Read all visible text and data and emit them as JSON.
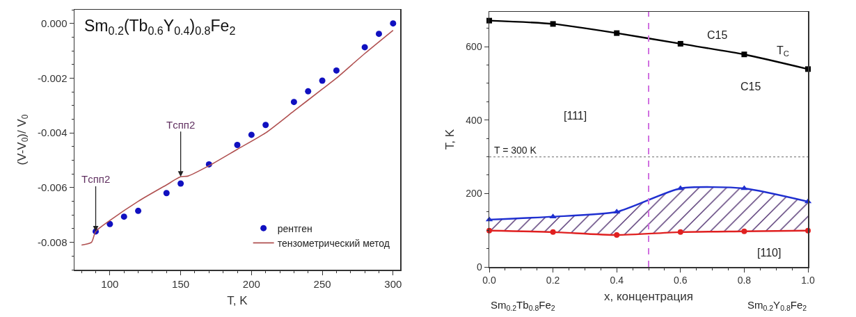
{
  "chart_data": [
    {
      "type": "scatter",
      "title": "Sm$_{0.2}$(Tb$_{0.6}$Y$_{0.4}$)$_{0.8}$Fe$_{2}$",
      "xlabel": "T, K",
      "ylabel": "(V-V$_{0}$)/ V$_{0}$",
      "xlim": [
        75,
        305
      ],
      "xticks": [
        100,
        150,
        200,
        250,
        300
      ],
      "ylim": [
        -0.009,
        0.0005
      ],
      "yticks": [
        {
          "value": -0.008,
          "label": "-0.008"
        },
        {
          "value": -0.006,
          "label": "-0.006"
        },
        {
          "value": -0.004,
          "label": "-0.004"
        },
        {
          "value": -0.002,
          "label": "-0.002"
        },
        {
          "value": 0,
          "label": "0.000"
        }
      ],
      "grid": false,
      "legend": "bottom right",
      "series": [
        {
          "name": "рентген",
          "marker": "circle",
          "color": "#1010c0",
          "x": [
            90,
            100,
            110,
            120,
            140,
            150,
            170,
            190,
            200,
            210,
            230,
            240,
            250,
            260,
            280,
            290,
            300
          ],
          "values": [
            -0.0076,
            -0.00733,
            -0.00706,
            -0.00685,
            -0.0062,
            -0.00585,
            -0.00515,
            -0.00444,
            -0.00407,
            -0.00371,
            -0.00287,
            -0.00248,
            -0.00209,
            -0.00172,
            -0.00087,
            -0.00038,
            0
          ]
        },
        {
          "name": "тензометрический метод",
          "type": "line",
          "marker": "none",
          "line_style": "solid",
          "color": "#b05050",
          "x": [
            80,
            87,
            90,
            100,
            120,
            140,
            150,
            155,
            170,
            190,
            210,
            230,
            250,
            260,
            280,
            300
          ],
          "values": [
            -0.0081,
            -0.008,
            -0.0076,
            -0.0072,
            -0.0065,
            -0.0059,
            -0.0056,
            -0.00558,
            -0.0052,
            -0.0046,
            -0.004,
            -0.0032,
            -0.0024,
            -0.002,
            -0.0011,
            -0.00025
          ]
        }
      ],
      "annotations": [
        {
          "text": "Tспп2",
          "x": 90,
          "y": -0.0076
        },
        {
          "text": "Tспп2",
          "x": 150,
          "y": -0.0056
        }
      ]
    },
    {
      "type": "line",
      "xlabel": "x, концентрация",
      "ylabel": "T, K",
      "xlim": [
        0,
        1
      ],
      "xticks": [
        {
          "value": 0,
          "label": "0.0"
        },
        {
          "value": 0.2,
          "label": "0.2"
        },
        {
          "value": 0.4,
          "label": "0.4"
        },
        {
          "value": 0.6,
          "label": "0.6"
        },
        {
          "value": 0.8,
          "label": "0.8"
        },
        {
          "value": 1,
          "label": "1.0"
        }
      ],
      "ylim": [
        0,
        695
      ],
      "yticks": [
        0,
        200,
        400,
        600
      ],
      "grid": false,
      "x": [
        0,
        0.2,
        0.4,
        0.6,
        0.8,
        1
      ],
      "series": [
        {
          "marker": "square",
          "color": "#000000",
          "values": [
            671,
            662,
            637,
            608,
            579,
            539
          ]
        },
        {
          "marker": "circle",
          "color": "#e02020",
          "values": [
            99,
            95,
            87,
            95,
            97,
            99
          ]
        },
        {
          "type": "area",
          "marker": "triangle",
          "color": "#1f2fd0",
          "values": [
            129,
            137,
            150,
            214,
            214,
            178
          ]
        }
      ],
      "ref_lines": [
        {
          "axis": "y",
          "value": 300,
          "label": "T = 300 K",
          "color": "#888888",
          "line_style": "dotted"
        },
        {
          "axis": "x",
          "value": 0.5,
          "color": "#d070e0",
          "line_style": "dashed"
        }
      ],
      "annotations": [
        "C15",
        "T$_{C}$",
        "C15",
        "[111]",
        "[110]",
        "Sm$_{0.2}$Tb$_{0.8}$Fe$_{2}$",
        "Sm$_{0.2}$Y$_{0.8}$Fe$_{2}$"
      ]
    }
  ]
}
